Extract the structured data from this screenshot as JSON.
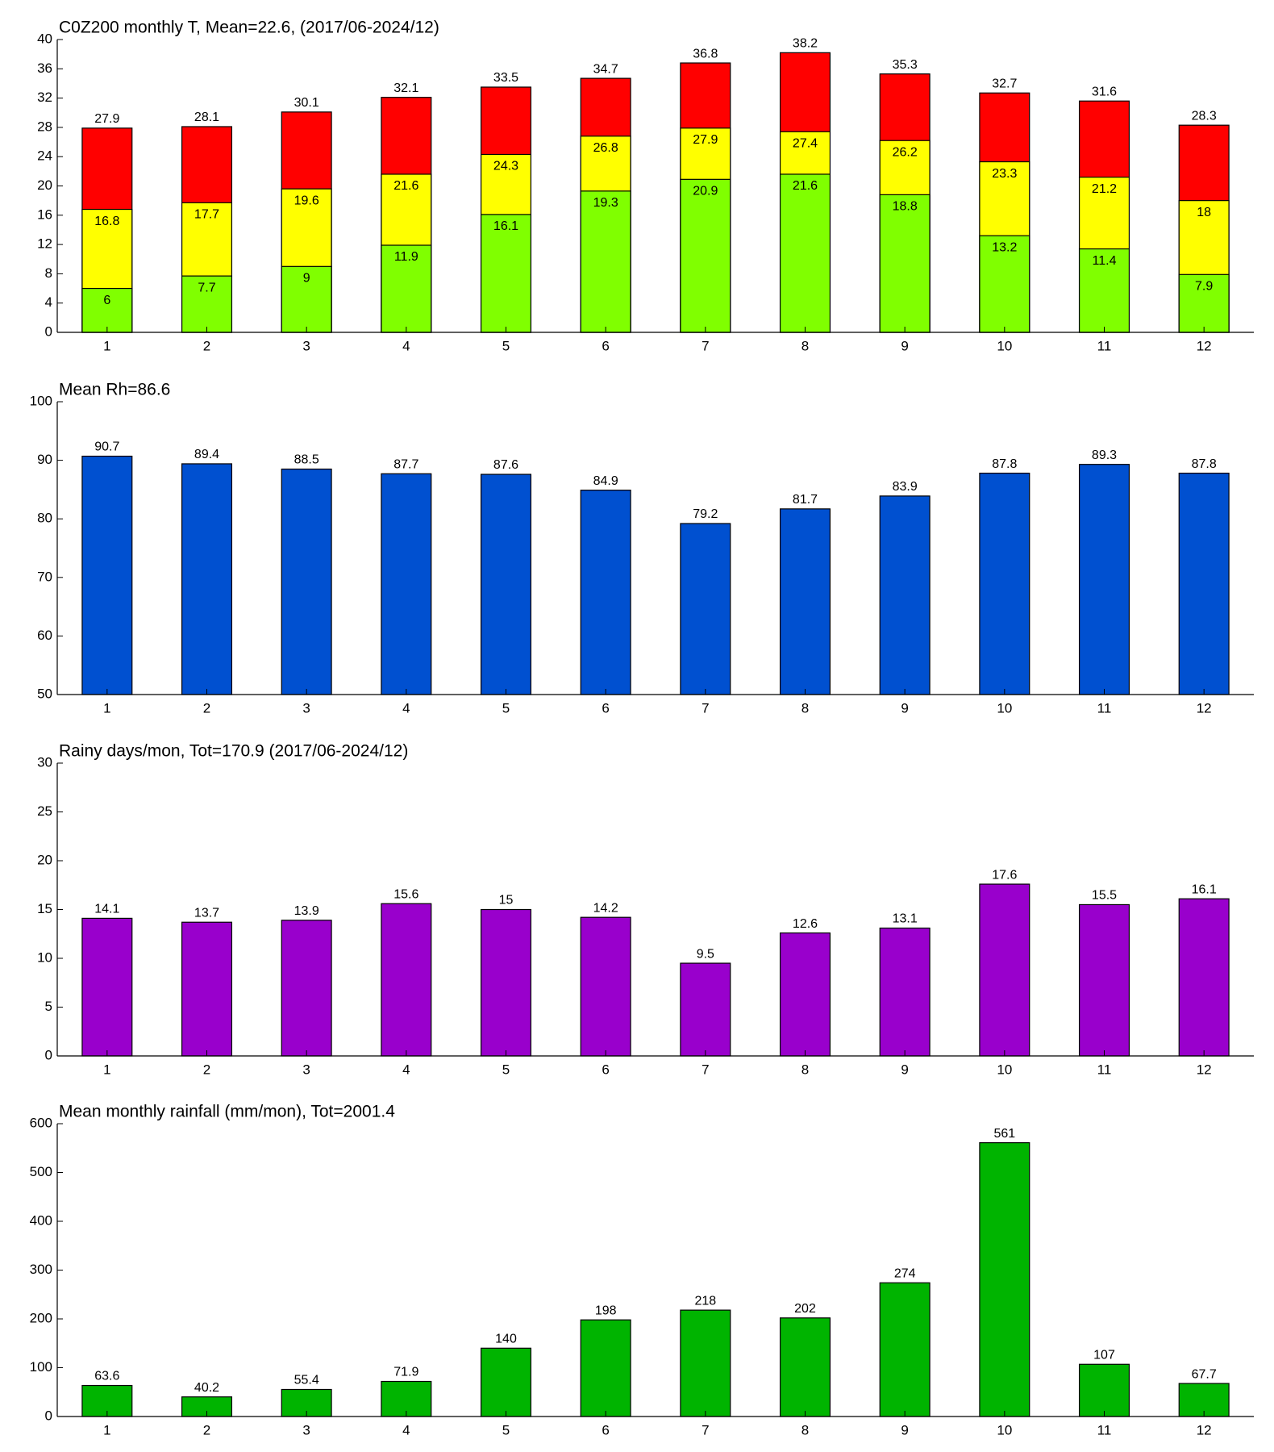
{
  "chart_data": [
    {
      "type": "bar",
      "title": "C0Z200 monthly T, Mean=22.6, (2017/06-2024/12)",
      "barmode": "overlay",
      "categories": [
        "1",
        "2",
        "3",
        "4",
        "5",
        "6",
        "7",
        "8",
        "9",
        "10",
        "11",
        "12"
      ],
      "series": [
        {
          "color": "#ff0000",
          "values": [
            27.9,
            28.1,
            30.1,
            32.1,
            33.5,
            34.7,
            36.8,
            38.2,
            35.3,
            32.7,
            31.6,
            28.3
          ]
        },
        {
          "color": "#ffff00",
          "values": [
            16.8,
            17.7,
            19.6,
            21.6,
            24.3,
            26.8,
            27.9,
            27.4,
            26.2,
            23.3,
            21.2,
            18
          ]
        },
        {
          "color": "#80ff00",
          "values": [
            6,
            7.7,
            9,
            11.9,
            16.1,
            19.3,
            20.9,
            21.6,
            18.8,
            13.2,
            11.4,
            7.9
          ]
        }
      ],
      "ylim": [
        0,
        40
      ],
      "yticks": [
        0,
        4,
        8,
        12,
        16,
        20,
        24,
        28,
        32,
        36,
        40
      ]
    },
    {
      "type": "bar",
      "title": "Mean Rh=86.6",
      "categories": [
        "1",
        "2",
        "3",
        "4",
        "5",
        "6",
        "7",
        "8",
        "9",
        "10",
        "11",
        "12"
      ],
      "values": [
        90.7,
        89.4,
        88.5,
        87.7,
        87.6,
        84.9,
        79.2,
        81.7,
        83.9,
        87.8,
        89.3,
        87.8
      ],
      "color": "#0050d0",
      "ylim": [
        50,
        100
      ],
      "yticks": [
        50,
        60,
        70,
        80,
        90,
        100
      ]
    },
    {
      "type": "bar",
      "title": "Rainy days/mon, Tot=170.9 (2017/06-2024/12)",
      "categories": [
        "1",
        "2",
        "3",
        "4",
        "5",
        "6",
        "7",
        "8",
        "9",
        "10",
        "11",
        "12"
      ],
      "values": [
        14.1,
        13.7,
        13.9,
        15.6,
        15,
        14.2,
        9.5,
        12.6,
        13.1,
        17.6,
        15.5,
        16.1
      ],
      "color": "#9900cc",
      "ylim": [
        0,
        30
      ],
      "yticks": [
        0,
        5,
        10,
        15,
        20,
        25,
        30
      ]
    },
    {
      "type": "bar",
      "title": "Mean monthly rainfall (mm/mon), Tot=2001.4",
      "categories": [
        "1",
        "2",
        "3",
        "4",
        "5",
        "6",
        "7",
        "8",
        "9",
        "10",
        "11",
        "12"
      ],
      "values": [
        63.6,
        40.2,
        55.4,
        71.9,
        140,
        198,
        218,
        202,
        274,
        561,
        107,
        67.7
      ],
      "color": "#00b400",
      "ylim": [
        0,
        600
      ],
      "yticks": [
        0,
        100,
        200,
        300,
        400,
        500,
        600
      ]
    }
  ]
}
